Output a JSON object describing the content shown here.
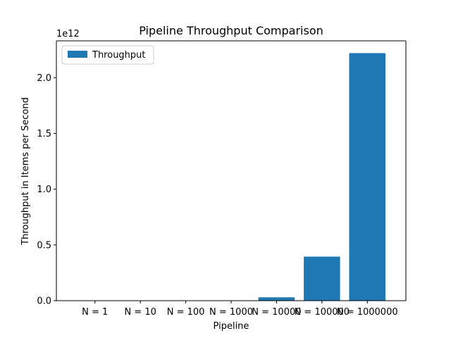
{
  "chart_data": {
    "type": "bar",
    "title": "Pipeline Throughput Comparison",
    "xlabel": "Pipeline",
    "ylabel": "Throughput in Items per Second",
    "categories": [
      "N = 1",
      "N = 10",
      "N = 100",
      "N = 1000",
      "N = 10000",
      "N = 100000",
      "N = 1000000"
    ],
    "series": [
      {
        "name": "Throughput",
        "color": "#1f77b4",
        "values": [
          0,
          0,
          0,
          0,
          30000000000,
          395000000000,
          2220000000000
        ]
      }
    ],
    "ylim": [
      0,
      2330000000000
    ],
    "y_scale_multiplier": "1e12",
    "y_ticks": [
      0,
      500000000000,
      1000000000000,
      1500000000000,
      2000000000000
    ],
    "y_tick_labels": [
      "0.0",
      "0.5",
      "1.0",
      "1.5",
      "2.0"
    ],
    "legend_position": "top-left",
    "grid": false
  }
}
